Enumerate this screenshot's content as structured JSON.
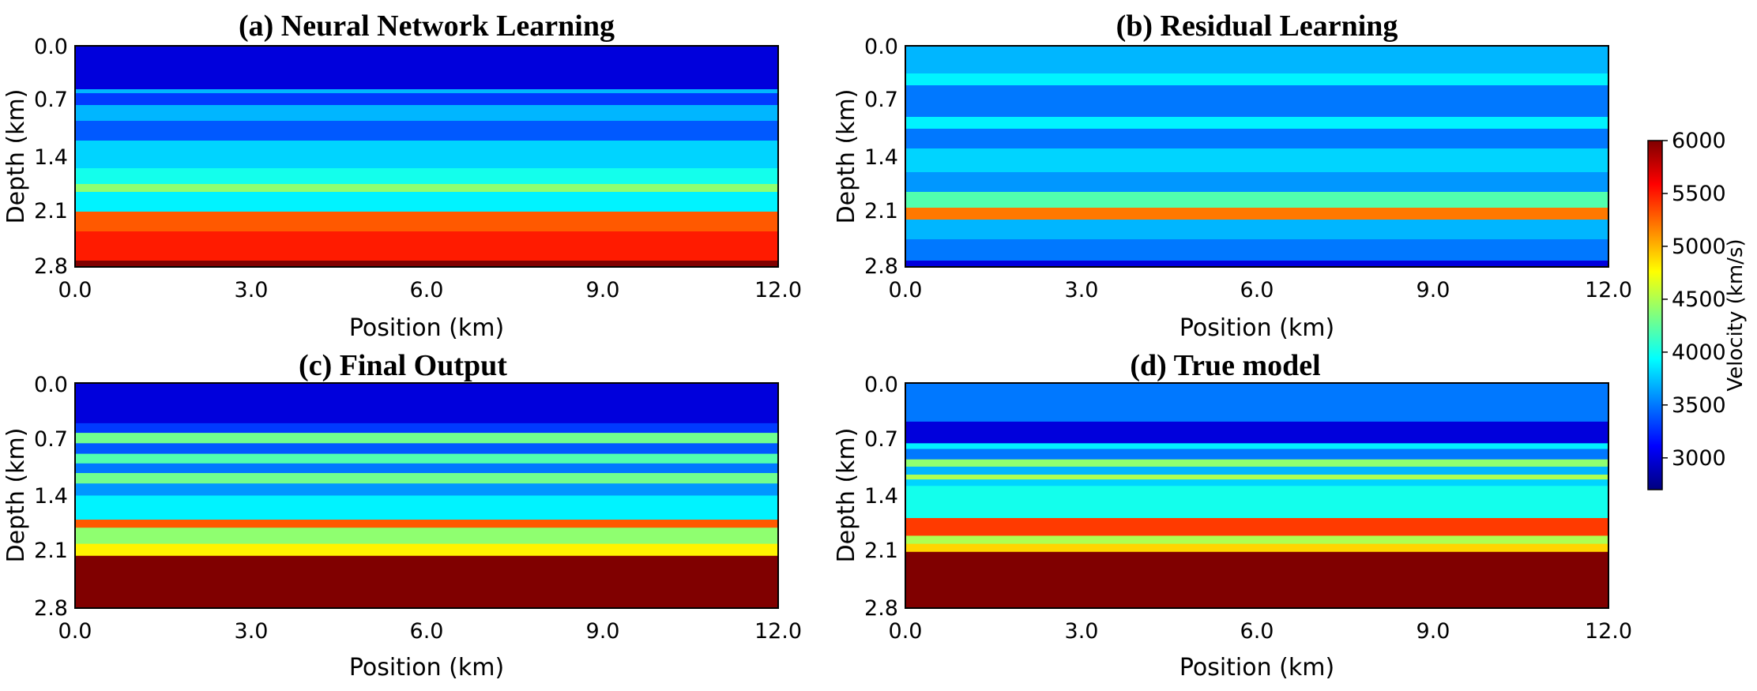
{
  "chart_data": [
    {
      "type": "heatmap",
      "title": "(a)  Neural Network Learning",
      "xlabel": "Position (km)",
      "ylabel": "Depth (km)",
      "xlim": [
        0.0,
        12.0
      ],
      "ylim": [
        0.0,
        2.8
      ],
      "xticks": [
        "0.0",
        "3.0",
        "6.0",
        "9.0",
        "12.0"
      ],
      "yticks": [
        "0.0",
        "0.7",
        "1.4",
        "2.1",
        "2.8"
      ],
      "layers_km": [
        [
          0.0,
          0.55,
          3000
        ],
        [
          0.55,
          0.6,
          3700
        ],
        [
          0.6,
          0.75,
          3300
        ],
        [
          0.75,
          0.95,
          3700
        ],
        [
          0.95,
          1.2,
          3400
        ],
        [
          1.2,
          1.55,
          3800
        ],
        [
          1.55,
          1.75,
          4000
        ],
        [
          1.75,
          1.85,
          4400
        ],
        [
          1.85,
          2.1,
          3900
        ],
        [
          2.1,
          2.35,
          5300
        ],
        [
          2.35,
          2.72,
          5500
        ],
        [
          2.72,
          2.8,
          6000
        ]
      ]
    },
    {
      "type": "heatmap",
      "title": "(b) Residual Learning",
      "xlabel": "Position (km)",
      "ylabel": "Depth (km)",
      "xlim": [
        0.0,
        12.0
      ],
      "ylim": [
        0.0,
        2.8
      ],
      "xticks": [
        "0.0",
        "3.0",
        "6.0",
        "9.0",
        "12.0"
      ],
      "yticks": [
        "0.0",
        "0.7",
        "1.4",
        "2.1",
        "2.8"
      ],
      "layers_km": [
        [
          0.0,
          0.35,
          3700
        ],
        [
          0.35,
          0.5,
          3900
        ],
        [
          0.5,
          0.9,
          3500
        ],
        [
          0.9,
          1.05,
          3900
        ],
        [
          1.05,
          1.3,
          3500
        ],
        [
          1.3,
          1.6,
          3800
        ],
        [
          1.6,
          1.85,
          3600
        ],
        [
          1.85,
          2.05,
          4200
        ],
        [
          2.05,
          2.2,
          5200
        ],
        [
          2.2,
          2.45,
          3700
        ],
        [
          2.45,
          2.72,
          3500
        ],
        [
          2.72,
          2.8,
          3000
        ]
      ]
    },
    {
      "type": "heatmap",
      "title": "(c) Final Output",
      "xlabel": "Position (km)",
      "ylabel": "Depth (km)",
      "xlim": [
        0.0,
        12.0
      ],
      "ylim": [
        0.0,
        2.8
      ],
      "xticks": [
        "0.0",
        "3.0",
        "6.0",
        "9.0",
        "12.0"
      ],
      "yticks": [
        "0.0",
        "0.7",
        "1.4",
        "2.1",
        "2.8"
      ],
      "layers_km": [
        [
          0.0,
          0.5,
          3000
        ],
        [
          0.5,
          0.62,
          3300
        ],
        [
          0.62,
          0.75,
          4300
        ],
        [
          0.75,
          0.88,
          3400
        ],
        [
          0.88,
          1.0,
          4200
        ],
        [
          1.0,
          1.12,
          3500
        ],
        [
          1.12,
          1.25,
          4300
        ],
        [
          1.25,
          1.4,
          3600
        ],
        [
          1.4,
          1.7,
          3900
        ],
        [
          1.7,
          1.8,
          5300
        ],
        [
          1.8,
          2.0,
          4400
        ],
        [
          2.0,
          2.15,
          4800
        ],
        [
          2.15,
          2.8,
          6000
        ]
      ]
    },
    {
      "type": "heatmap",
      "title": "(d) True model",
      "xlabel": "Position (km)",
      "ylabel": "Depth (km)",
      "xlim": [
        0.0,
        12.0
      ],
      "ylim": [
        0.0,
        2.8
      ],
      "xticks": [
        "0.0",
        "3.0",
        "6.0",
        "9.0",
        "12.0"
      ],
      "yticks": [
        "0.0",
        "0.7",
        "1.4",
        "2.1",
        "2.8"
      ],
      "layers_km": [
        [
          0.0,
          0.48,
          3500
        ],
        [
          0.48,
          0.75,
          3000
        ],
        [
          0.75,
          0.82,
          3900
        ],
        [
          0.82,
          0.95,
          3500
        ],
        [
          0.95,
          1.04,
          4400
        ],
        [
          1.04,
          1.14,
          3700
        ],
        [
          1.14,
          1.2,
          4500
        ],
        [
          1.2,
          1.28,
          3800
        ],
        [
          1.28,
          1.68,
          4000
        ],
        [
          1.68,
          1.9,
          5400
        ],
        [
          1.9,
          2.0,
          4500
        ],
        [
          2.0,
          2.1,
          4900
        ],
        [
          2.1,
          2.8,
          6000
        ]
      ]
    }
  ],
  "colorbar": {
    "label": "Velocity (km/s)",
    "min": 2700,
    "max": 6000,
    "ticks": [
      "6000",
      "5500",
      "5000",
      "4500",
      "4000",
      "3500",
      "3000"
    ],
    "tick_values": [
      6000,
      5500,
      5000,
      4500,
      4000,
      3500,
      3000
    ],
    "cmap": "jet"
  }
}
